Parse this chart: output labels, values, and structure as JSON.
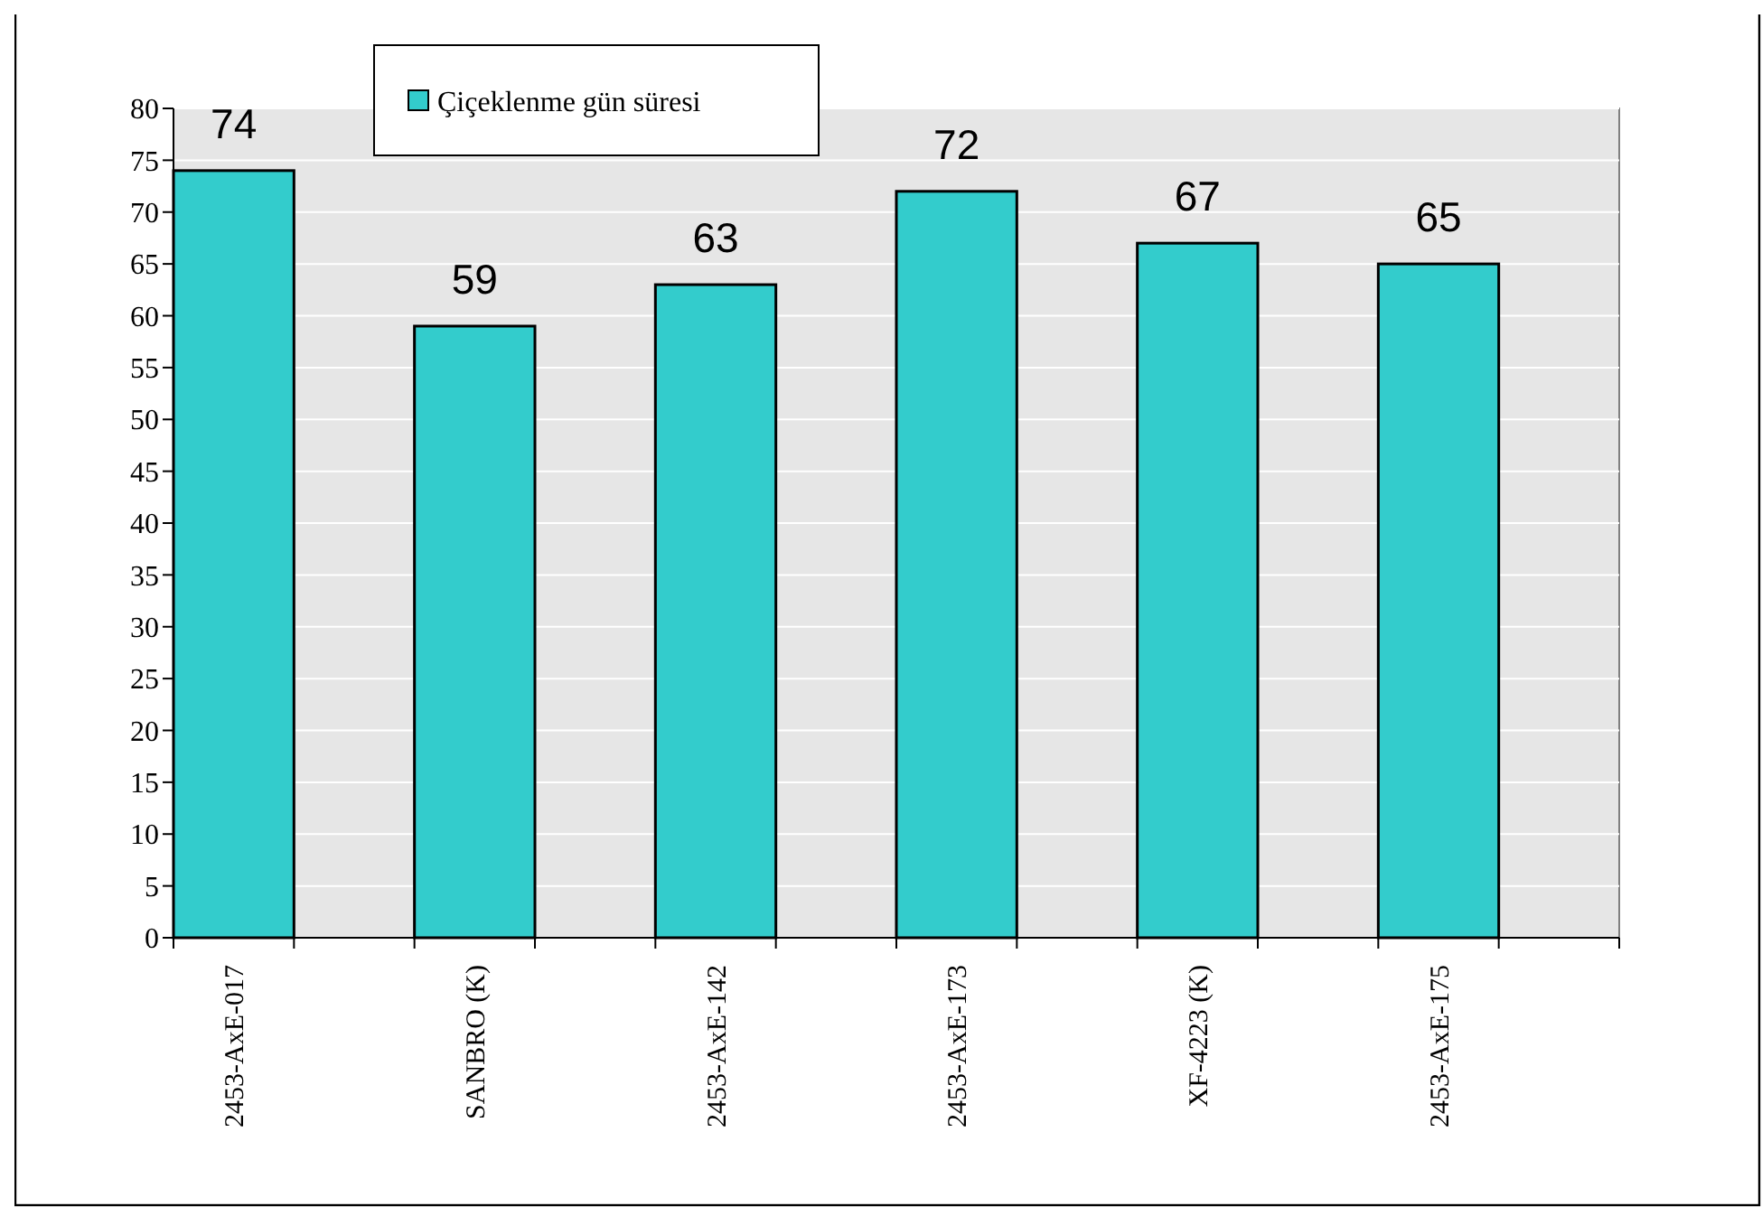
{
  "chart_data": {
    "type": "bar",
    "categories": [
      "2453-AxE-017",
      "SANBRO (K)",
      "2453-AxE-142",
      "2453-AxE-173",
      "XF-4223 (K)",
      "2453-AxE-175"
    ],
    "series": [
      {
        "name": "Çiçeklenme gün süresi",
        "color": "#33cccc",
        "values": [
          74,
          59,
          63,
          72,
          67,
          65
        ]
      }
    ],
    "ylim": [
      0,
      80
    ],
    "yticks": [
      0,
      5,
      10,
      15,
      20,
      25,
      30,
      35,
      40,
      45,
      50,
      55,
      60,
      65,
      70,
      75,
      80
    ],
    "grid": "y",
    "legend": "top left",
    "data_labels": true
  }
}
